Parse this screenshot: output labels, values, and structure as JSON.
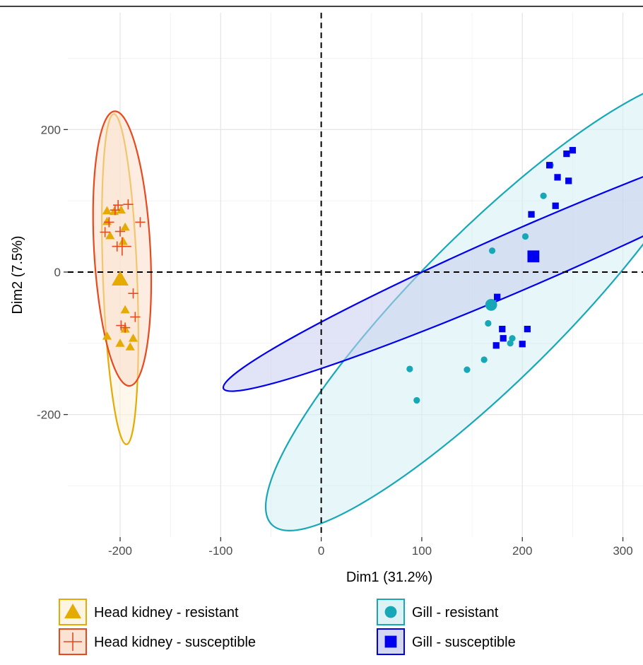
{
  "chart_data": {
    "type": "scatter",
    "xlabel": "Dim1 (31.2%)",
    "ylabel": "Dim2 (7.5%)",
    "xlim": [
      -252,
      320
    ],
    "ylim": [
      -372,
      364
    ],
    "x_ticks": [
      {
        "value": -200,
        "label": "-200"
      },
      {
        "value": -100,
        "label": "-100"
      },
      {
        "value": 0,
        "label": "0"
      },
      {
        "value": 100,
        "label": "100"
      },
      {
        "value": 200,
        "label": "200"
      },
      {
        "value": 300,
        "label": "300"
      }
    ],
    "y_ticks": [
      {
        "value": -200,
        "label": "-200"
      },
      {
        "value": 0,
        "label": "0"
      },
      {
        "value": 200,
        "label": "200"
      }
    ],
    "grid": true,
    "reference_lines": {
      "x": 0,
      "y": 0,
      "style": "dashed"
    },
    "legend_position": "bottom",
    "series": [
      {
        "name": "Head kidney - resistant",
        "marker": "triangle",
        "color": "#e6ab02",
        "fill": "#fdf1dc",
        "points": [
          [
            -213,
            86
          ],
          [
            -206,
            85
          ],
          [
            -199,
            87
          ],
          [
            -213,
            71
          ],
          [
            -210,
            51
          ],
          [
            -195,
            63
          ],
          [
            -197,
            43
          ],
          [
            -195,
            -53
          ],
          [
            -195,
            -80
          ],
          [
            -187,
            -93
          ],
          [
            -213,
            -90
          ],
          [
            -200,
            -100
          ],
          [
            -190,
            -105
          ]
        ],
        "centroid": [
          -200,
          -10
        ],
        "ellipse": {
          "center": [
            -200,
            -10
          ],
          "semi_axes": [
            17,
            232
          ],
          "angle_deg": 2.2
        }
      },
      {
        "name": "Head kidney - susceptible",
        "marker": "plus",
        "color": "#e8491e",
        "fill": "#f9dcc8",
        "points": [
          [
            -202,
            94
          ],
          [
            -192,
            95
          ],
          [
            -205,
            87
          ],
          [
            -211,
            70
          ],
          [
            -180,
            70
          ],
          [
            -215,
            56
          ],
          [
            -200,
            57
          ],
          [
            -203,
            36
          ],
          [
            -187,
            -30
          ],
          [
            -185,
            -63
          ],
          [
            -199,
            -75
          ],
          [
            -195,
            -78
          ]
        ],
        "centroid": [
          -198,
          36
        ],
        "ellipse": {
          "center": [
            -198,
            33
          ],
          "semi_axes": [
            28,
            193
          ],
          "angle_deg": 3.1
        }
      },
      {
        "name": "Gill - resistant",
        "marker": "circle",
        "color": "#17a8b8",
        "fill": "#d4eff2",
        "points": [
          [
            228,
            150
          ],
          [
            221,
            107
          ],
          [
            203,
            50
          ],
          [
            170,
            30
          ],
          [
            166,
            -72
          ],
          [
            190,
            -93
          ],
          [
            188,
            -100
          ],
          [
            162,
            -123
          ],
          [
            145,
            -137
          ],
          [
            88,
            -136
          ],
          [
            95,
            -180
          ]
        ],
        "centroid": [
          169,
          -46
        ],
        "ellipse": {
          "center": [
            170,
            -45
          ],
          "semi_axes": [
            310,
            103
          ],
          "angle_deg": 45
        }
      },
      {
        "name": "Gill - susceptible",
        "marker": "square",
        "color": "#0000ee",
        "fill": "#c8cdef",
        "points": [
          [
            250,
            171
          ],
          [
            244,
            166
          ],
          [
            227,
            150
          ],
          [
            235,
            133
          ],
          [
            246,
            128
          ],
          [
            233,
            93
          ],
          [
            209,
            81
          ],
          [
            175,
            -35
          ],
          [
            180,
            -80
          ],
          [
            205,
            -80
          ],
          [
            181,
            -93
          ],
          [
            174,
            -103
          ],
          [
            200,
            -101
          ]
        ],
        "centroid": [
          211,
          22
        ],
        "ellipse": {
          "center": [
            210,
            25
          ],
          "semi_axes": [
            335,
            41
          ],
          "angle_deg": 23.5
        }
      }
    ]
  }
}
